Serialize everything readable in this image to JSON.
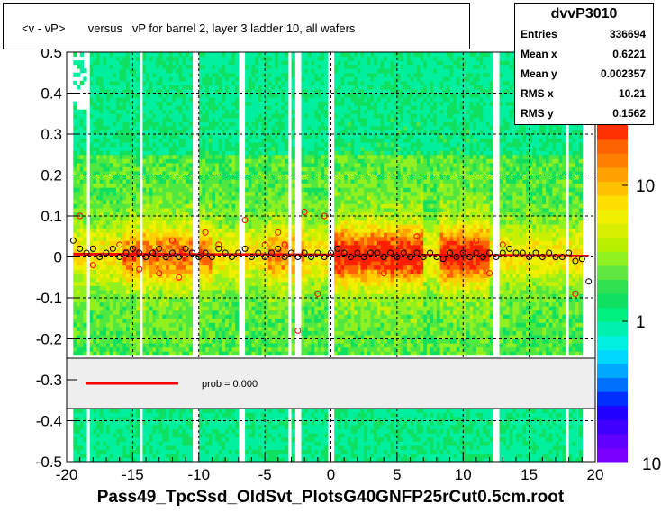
{
  "chart_data": {
    "type": "heatmap",
    "title": "<v - vP>       versus   vP for barrel 2, layer 3 ladder 10, all wafers",
    "xlabel": "Pass49_TpcSsd_OldSvt_PlotsG40GNFP25rCut0.5cm.root",
    "ylabel": "",
    "xlim": [
      -20,
      20
    ],
    "ylim": [
      -0.5,
      0.5
    ],
    "x_ticks": [
      -20,
      -15,
      -10,
      -5,
      0,
      5,
      10,
      15,
      20
    ],
    "y_ticks": [
      -0.5,
      -0.4,
      -0.3,
      -0.2,
      -0.1,
      0,
      0.1,
      0.2,
      0.3,
      0.4,
      0.5
    ],
    "x_tick_labels": [
      "-20",
      "-15",
      "-10",
      "-5",
      "0",
      "5",
      "10",
      "15",
      "20"
    ],
    "y_tick_labels": [
      "-0.5",
      "-0.4",
      "-0.3",
      "-0.2",
      "-0.1",
      "0",
      "0.1",
      "0.2",
      "0.3",
      "0.4",
      "0.5"
    ],
    "grid": true,
    "z_scale": "log",
    "z_ticks": [
      1,
      10
    ],
    "z_tick_labels": [
      "1",
      "10"
    ],
    "z_axis_bottom_label": "10",
    "stats": {
      "name": "dvvP3010",
      "rows": [
        {
          "key": "Entries",
          "value": "336694"
        },
        {
          "key": "Mean x",
          "value": "0.6221"
        },
        {
          "key": "Mean y",
          "value": "0.002357"
        },
        {
          "key": "RMS x",
          "value": "10.21"
        },
        {
          "key": "RMS y",
          "value": "0.1562"
        }
      ]
    },
    "legend": {
      "label": "prob = 0.000",
      "color": "#ff0000"
    },
    "fit_line": {
      "x": [
        -19.5,
        19.5
      ],
      "y": [
        0.007,
        0.003
      ],
      "color": "#ff0000"
    },
    "profile_points": {
      "x": [
        -19.5,
        -19,
        -18.5,
        -18,
        -17.5,
        -17,
        -16.5,
        -16,
        -15.5,
        -15,
        -14.5,
        -14,
        -13.5,
        -13,
        -12.5,
        -12,
        -11.5,
        -11,
        -10.5,
        -10,
        -9.5,
        -9,
        -8.5,
        -8,
        -7.5,
        -7,
        -6.5,
        -6,
        -5.5,
        -5,
        -4.5,
        -4,
        -3.5,
        -3,
        -2.5,
        -2,
        -1.5,
        -1,
        -0.5,
        0,
        0.5,
        1,
        1.5,
        2,
        2.5,
        3,
        3.5,
        4,
        4.5,
        5,
        5.5,
        6,
        6.5,
        7,
        7.5,
        8,
        8.5,
        9,
        9.5,
        10,
        10.5,
        11,
        11.5,
        12,
        12.5,
        13,
        13.5,
        14,
        14.5,
        15,
        15.5,
        16,
        16.5,
        17,
        17.5,
        18,
        18.5,
        19,
        19.5
      ],
      "y": [
        0.04,
        0.02,
        0.01,
        0.02,
        0.0,
        0.01,
        0.02,
        0.0,
        0.01,
        0.02,
        0.01,
        0.0,
        0.01,
        0.02,
        0.0,
        0.01,
        0.0,
        0.02,
        0.01,
        0.0,
        0.01,
        0.0,
        0.02,
        0.01,
        0.0,
        0.01,
        0.02,
        0.0,
        0.01,
        0.0,
        0.01,
        0.02,
        0.0,
        0.01,
        0.0,
        0.01,
        0.0,
        0.01,
        0.0,
        0.01,
        0.02,
        0.01,
        0.0,
        0.01,
        0.0,
        0.01,
        0.01,
        0.0,
        0.01,
        0.0,
        0.01,
        0.0,
        0.01,
        0.0,
        0.01,
        0.0,
        -0.005,
        0.01,
        0.0,
        0.01,
        0.0,
        0.01,
        0.0,
        0.01,
        0.0,
        0.01,
        0.02,
        0.01,
        0.01,
        0.0,
        0.01,
        0.0,
        0.01,
        0.0,
        0.0,
        0.01,
        -0.01,
        -0.005,
        -0.06
      ],
      "color": "#000000"
    },
    "outlier_points": {
      "x": [
        -19,
        -18,
        -16,
        -14.5,
        -13,
        -12,
        -11.5,
        -9.5,
        -8.5,
        -6.5,
        -5,
        -4,
        -3.5,
        -2.5,
        -2,
        -1,
        -0.5,
        4,
        6.5,
        11,
        12,
        13,
        18.5
      ],
      "y": [
        0.1,
        -0.02,
        0.03,
        -0.03,
        -0.04,
        0.04,
        -0.05,
        0.06,
        0.03,
        0.09,
        0.03,
        0.06,
        0.03,
        -0.18,
        0.11,
        -0.09,
        0.1,
        -0.04,
        0.05,
        0.04,
        -0.04,
        0.03,
        -0.09
      ],
      "color": "#ff0000"
    }
  }
}
